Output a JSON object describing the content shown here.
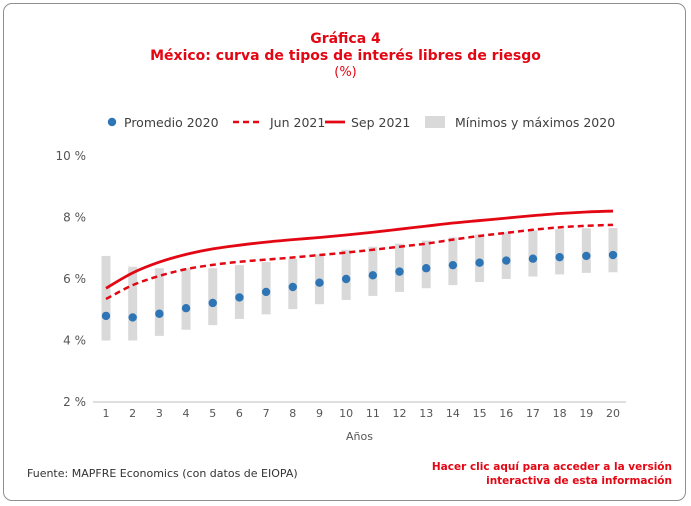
{
  "header": {
    "number": "Gráfica 4",
    "title": "México: curva de tipos de interés libres de riesgo",
    "units": "(%)"
  },
  "footer": {
    "source": "Fuente: MAPFRE Economics (con datos de EIOPA)",
    "link_line1": "Hacer clic aquí para acceder a la versión",
    "link_line2": "interactiva de esta información"
  },
  "colors": {
    "accent": "#e30613",
    "dots": "#2e75b6",
    "range_bars": "#d9d9d9",
    "axis": "#bfbfbf"
  },
  "chart_data": {
    "type": "line",
    "x": [
      1,
      2,
      3,
      4,
      5,
      6,
      7,
      8,
      9,
      10,
      11,
      12,
      13,
      14,
      15,
      16,
      17,
      18,
      19,
      20
    ],
    "xlabel": "Años",
    "ylabel": "",
    "ylim": [
      2,
      10
    ],
    "yticks": [
      2,
      4,
      6,
      8,
      10
    ],
    "ytick_labels": [
      "2 %",
      "4 %",
      "6 %",
      "8 %",
      "10 %"
    ],
    "grid": false,
    "legend_position": "top",
    "series": [
      {
        "name": "Promedio 2020",
        "style": "dots",
        "values": [
          4.8,
          4.75,
          4.87,
          5.05,
          5.22,
          5.4,
          5.58,
          5.74,
          5.88,
          6.0,
          6.12,
          6.24,
          6.35,
          6.45,
          6.53,
          6.6,
          6.66,
          6.71,
          6.75,
          6.78
        ]
      },
      {
        "name": "Jun 2021",
        "style": "dashed",
        "values": [
          5.35,
          5.8,
          6.1,
          6.32,
          6.46,
          6.56,
          6.63,
          6.7,
          6.78,
          6.86,
          6.95,
          7.05,
          7.15,
          7.28,
          7.4,
          7.5,
          7.6,
          7.68,
          7.73,
          7.76
        ]
      },
      {
        "name": "Sep 2021",
        "style": "solid",
        "values": [
          5.7,
          6.2,
          6.55,
          6.8,
          6.98,
          7.1,
          7.2,
          7.28,
          7.35,
          7.43,
          7.52,
          7.62,
          7.72,
          7.82,
          7.9,
          7.98,
          8.06,
          8.13,
          8.18,
          8.21
        ]
      },
      {
        "name": "Mínimos y máximos 2020",
        "style": "range",
        "min": [
          4.0,
          4.0,
          4.15,
          4.35,
          4.5,
          4.7,
          4.85,
          5.02,
          5.18,
          5.32,
          5.45,
          5.58,
          5.7,
          5.8,
          5.9,
          6.0,
          6.08,
          6.15,
          6.2,
          6.22
        ],
        "max": [
          6.75,
          6.4,
          6.35,
          6.35,
          6.35,
          6.45,
          6.55,
          6.65,
          6.8,
          6.95,
          7.05,
          7.15,
          7.25,
          7.35,
          7.45,
          7.52,
          7.58,
          7.62,
          7.65,
          7.66
        ]
      }
    ]
  }
}
